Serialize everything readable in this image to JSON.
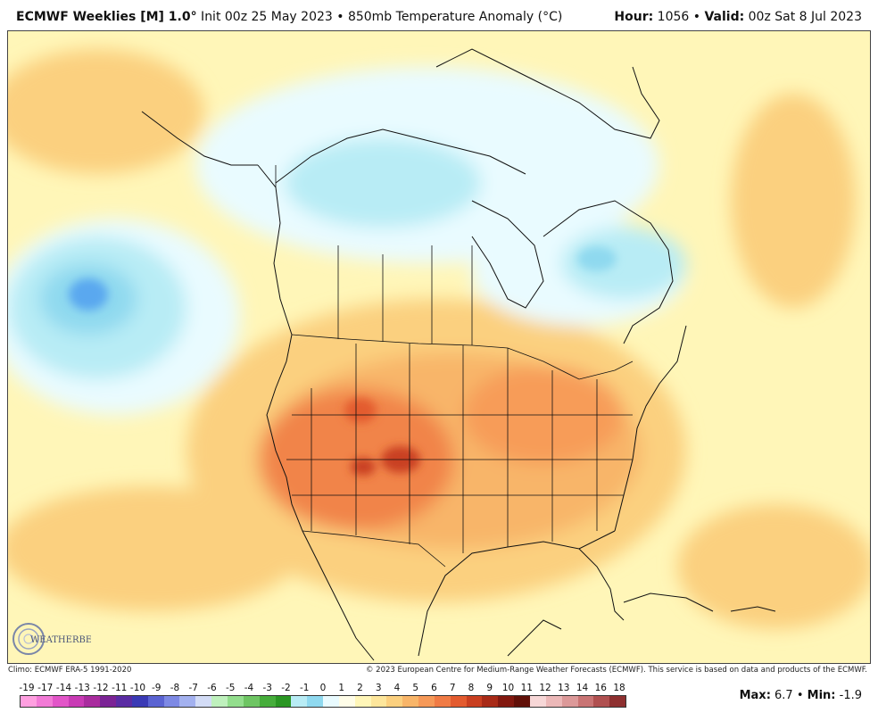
{
  "header": {
    "model": "ECMWF Weeklies [M] 1.0",
    "model_deg": "°",
    "init": " Init 00z 25 May 2023 • 850mb Temperature Anomaly (°C)",
    "hour_label": "Hour:",
    "hour_value": " 1056 • ",
    "valid_label": "Valid:",
    "valid_value": " 00z Sat 8 Jul 2023"
  },
  "logo": {
    "text": "WEATHERBELL"
  },
  "footer": {
    "climo": "Climo: ECMWF ERA-5 1991-2020",
    "copyright": "© 2023 European Centre for Medium-Range Weather Forecasts (ECMWF). This service is based on data and products of the ECMWF."
  },
  "legend": {
    "labels": [
      "-19",
      "-17",
      "-14",
      "-13",
      "-12",
      "-11",
      "-10",
      "-9",
      "-8",
      "-7",
      "-6",
      "-5",
      "-4",
      "-3",
      "-2",
      "-1",
      "0",
      "1",
      "2",
      "3",
      "4",
      "5",
      "6",
      "7",
      "8",
      "9",
      "10",
      "11",
      "12",
      "13",
      "14",
      "16",
      "18"
    ],
    "colors": [
      "#ff9fe0",
      "#f27ad6",
      "#e255c8",
      "#c93bb5",
      "#a92c9e",
      "#7b2395",
      "#5a2ca3",
      "#3a3ab5",
      "#5a63d2",
      "#7d89e4",
      "#a3b1ef",
      "#d3dcf6",
      "#bff1bd",
      "#93de8d",
      "#6ec563",
      "#46ad3b",
      "#2a9623",
      "#b8ecf5",
      "#8fd9ef",
      "#e9fbff",
      "#fffde8",
      "#fff6b8",
      "#fde69b",
      "#fbd07f",
      "#f8b569",
      "#f69958",
      "#f07b45",
      "#e35b2f",
      "#c93f20",
      "#a82a17",
      "#82180f",
      "#611008",
      "#f7d7d7",
      "#ecb8b8",
      "#dc9999",
      "#c97474",
      "#b05050",
      "#8e3030"
    ]
  },
  "maxmin": {
    "max_label": "Max:",
    "max_value": " 6.7 • ",
    "min_label": "Min:",
    "min_value": " -1.9"
  },
  "map": {
    "base_color": "#fff6b8",
    "warm_color": "#fbd07f",
    "warmer_color": "#f8b569",
    "hot_color": "#f07b45",
    "hottest_color": "#c93f20",
    "cool_color": "#e9fbff",
    "cold_color": "#b8ecf5",
    "colder_color": "#8fd9ef",
    "coldest_color": "#5aa8ef"
  }
}
